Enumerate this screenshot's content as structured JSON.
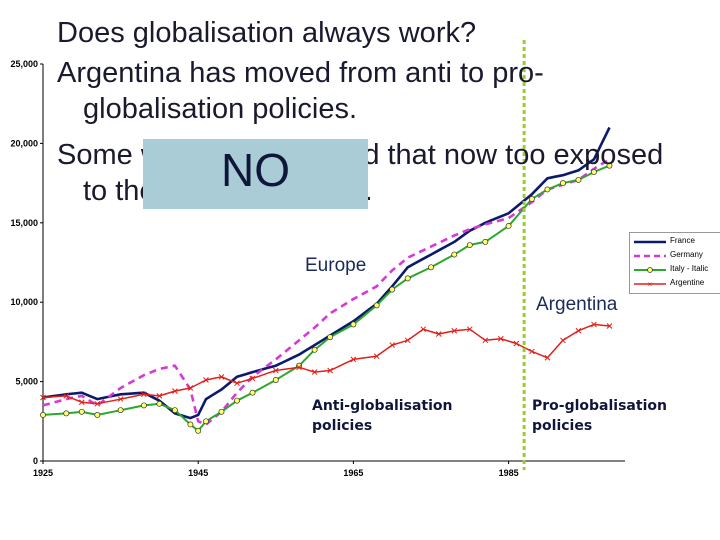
{
  "slide": {
    "title_lines": [
      "Does globalisation always work?",
      "Argentina has moved from anti to pro-",
      "globalisation policies.",
      "Some would argue a bad that now too exposed",
      "to the global economy."
    ],
    "stamp": "NO",
    "labels": {
      "europe": "Europe",
      "argentina": "Argentina"
    },
    "policies": {
      "anti": [
        "Anti-globalisation",
        "policies"
      ],
      "pro": [
        "Pro-globalisation",
        "policies"
      ]
    },
    "colors": {
      "france": "#0b1a6b",
      "germany": "#d63ad6",
      "italy": "#2ca82c",
      "italy_marker": "#ffff66",
      "argentina": "#e0201a",
      "divider": "#9acd32",
      "stamp_bg": "#a9ccd6"
    }
  },
  "chart_data": {
    "type": "line",
    "title": "",
    "xlabel": "",
    "ylabel": "",
    "xlim": [
      1925,
      2000
    ],
    "ylim": [
      0,
      25000
    ],
    "y_ticks": [
      "0",
      "5,000",
      "10,000",
      "15,000",
      "20,000",
      "25,000"
    ],
    "x_ticks": [
      "1925",
      "1945",
      "1965",
      "1985"
    ],
    "divider_year": 1987,
    "grid": false,
    "legend_position": "right",
    "series": [
      {
        "name": "France",
        "x": [
          1925,
          1928,
          1930,
          1932,
          1935,
          1938,
          1940,
          1942,
          1944,
          1945,
          1946,
          1948,
          1950,
          1952,
          1955,
          1958,
          1960,
          1962,
          1965,
          1968,
          1970,
          1972,
          1975,
          1978,
          1980,
          1982,
          1985,
          1988,
          1990,
          1992,
          1994,
          1996,
          1998
        ],
        "values": [
          4000,
          4200,
          4300,
          3900,
          4200,
          4300,
          3800,
          3000,
          2700,
          2900,
          3900,
          4500,
          5300,
          5600,
          6000,
          6700,
          7300,
          7900,
          8800,
          9900,
          11000,
          12200,
          13000,
          13800,
          14500,
          15000,
          15600,
          16800,
          17800,
          18000,
          18300,
          19000,
          21000
        ]
      },
      {
        "name": "Germany",
        "x": [
          1925,
          1928,
          1930,
          1932,
          1935,
          1938,
          1940,
          1942,
          1944,
          1945,
          1946,
          1948,
          1950,
          1952,
          1955,
          1958,
          1960,
          1962,
          1965,
          1968,
          1970,
          1972,
          1975,
          1978,
          1980,
          1982,
          1985,
          1988,
          1990,
          1992,
          1994,
          1996,
          1998
        ],
        "values": [
          3500,
          3900,
          4100,
          3500,
          4600,
          5400,
          5800,
          6000,
          4500,
          2500,
          2300,
          3100,
          4300,
          5300,
          6400,
          7600,
          8400,
          9300,
          10200,
          11000,
          12000,
          12800,
          13500,
          14200,
          14600,
          14900,
          15300,
          16300,
          17100,
          17400,
          17700,
          18400,
          19000
        ]
      },
      {
        "name": "Italy - Italic",
        "x": [
          1925,
          1928,
          1930,
          1932,
          1935,
          1938,
          1940,
          1942,
          1944,
          1945,
          1946,
          1948,
          1950,
          1952,
          1955,
          1958,
          1960,
          1962,
          1965,
          1968,
          1970,
          1972,
          1975,
          1978,
          1980,
          1982,
          1985,
          1988,
          1990,
          1992,
          1994,
          1996,
          1998
        ],
        "values": [
          2900,
          3000,
          3100,
          2900,
          3200,
          3500,
          3600,
          3200,
          2300,
          1900,
          2500,
          3100,
          3800,
          4300,
          5100,
          6000,
          7000,
          7800,
          8600,
          9800,
          10800,
          11500,
          12200,
          13000,
          13600,
          13800,
          14800,
          16500,
          17100,
          17500,
          17700,
          18200,
          18600
        ]
      },
      {
        "name": "Argentine",
        "x": [
          1925,
          1928,
          1930,
          1932,
          1935,
          1938,
          1940,
          1942,
          1944,
          1946,
          1948,
          1950,
          1952,
          1955,
          1958,
          1960,
          1962,
          1965,
          1968,
          1970,
          1972,
          1974,
          1976,
          1978,
          1980,
          1982,
          1984,
          1986,
          1988,
          1990,
          1992,
          1994,
          1996,
          1998
        ],
        "values": [
          4000,
          4100,
          3700,
          3600,
          3900,
          4200,
          4100,
          4400,
          4600,
          5100,
          5300,
          4900,
          5200,
          5700,
          5900,
          5600,
          5700,
          6400,
          6600,
          7300,
          7600,
          8300,
          8000,
          8200,
          8300,
          7600,
          7700,
          7400,
          6900,
          6500,
          7600,
          8200,
          8600,
          8500
        ]
      }
    ]
  }
}
